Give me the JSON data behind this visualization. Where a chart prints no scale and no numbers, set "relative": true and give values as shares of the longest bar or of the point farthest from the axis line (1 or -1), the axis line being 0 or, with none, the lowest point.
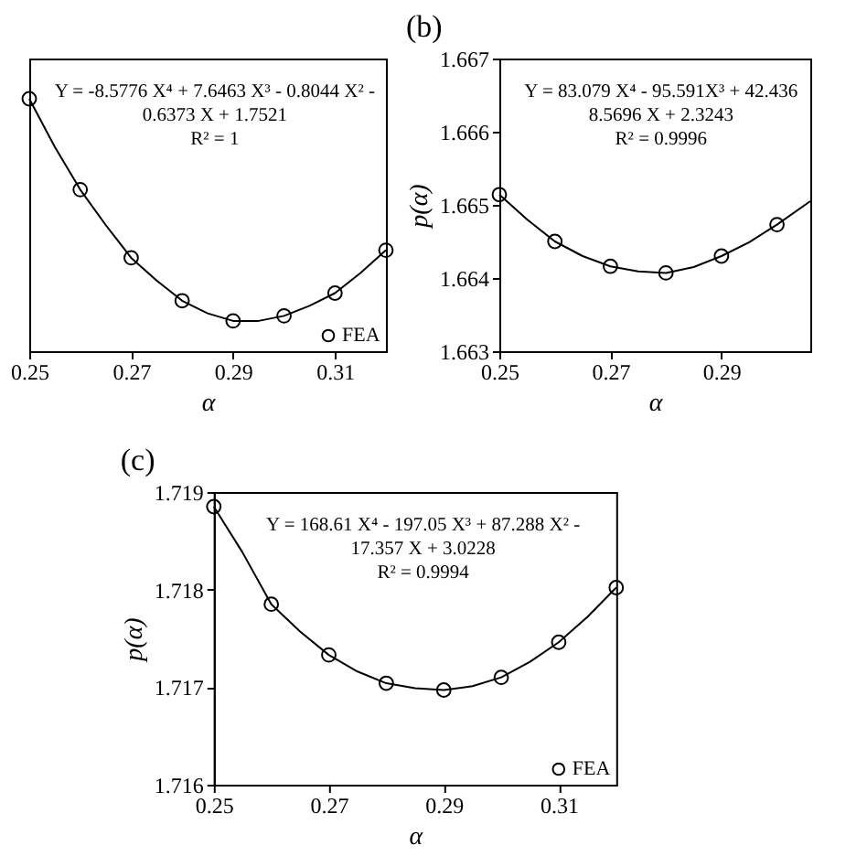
{
  "chart_data": [
    {
      "type": "scatter",
      "relative": true,
      "tick_labels": "x",
      "xlabel": "α",
      "xlim": [
        0.25,
        0.32
      ],
      "xticks": [
        0.25,
        0.27,
        0.29,
        0.31
      ],
      "marker": "circle",
      "legend": "bottom right",
      "annotations": [
        "Y = -8.5776 X⁴ + 7.6463 X³ - 0.8044 X² -",
        "0.6373 X + 1.7521",
        "R² = 1"
      ],
      "x": [
        0.25,
        0.26,
        0.27,
        0.28,
        0.29,
        0.3,
        0.31,
        0.32
      ],
      "series": [
        {
          "name": "FEA",
          "color": "#000000",
          "values": [
            1,
            0.64,
            0.37,
            0.2,
            0.12,
            0.14,
            0.23,
            0.4
          ]
        },
        {
          "type": "line",
          "marker": "none",
          "line_style": "solid",
          "color": "#000000",
          "x": [
            0.25,
            0.255,
            0.26,
            0.265,
            0.27,
            0.275,
            0.28,
            0.285,
            0.29,
            0.295,
            0.3,
            0.305,
            0.31,
            0.315,
            0.32
          ],
          "values": [
            1,
            0.81,
            0.64,
            0.5,
            0.37,
            0.28,
            0.2,
            0.15,
            0.12,
            0.12,
            0.14,
            0.18,
            0.23,
            0.31,
            0.4
          ]
        }
      ]
    },
    {
      "type": "scatter",
      "title": "(b)",
      "xlabel": "α",
      "ylabel": "p(α)",
      "xlim": [
        0.25,
        0.306
      ],
      "xticks": [
        0.25,
        0.27,
        0.29
      ],
      "ylim": [
        1.663,
        1.667
      ],
      "yticks": [
        1.663,
        1.664,
        1.665,
        1.666,
        1.667
      ],
      "marker": "circle",
      "annotations": [
        "Y = 83.079 X⁴ - 95.591X³ + 42.436",
        "8.5696 X + 2.3243",
        "R² = 0.9996"
      ],
      "x": [
        0.25,
        0.26,
        0.27,
        0.28,
        0.29,
        0.3
      ],
      "series": [
        {
          "color": "#000000",
          "values": [
            1.66514,
            1.6645,
            1.66416,
            1.66407,
            1.6643,
            1.66473
          ]
        },
        {
          "type": "line",
          "marker": "none",
          "line_style": "solid",
          "color": "#000000",
          "x": [
            0.25,
            0.255,
            0.26,
            0.265,
            0.27,
            0.275,
            0.28,
            0.285,
            0.29,
            0.295,
            0.3,
            0.306
          ],
          "values": [
            1.66514,
            1.6648,
            1.6645,
            1.6643,
            1.66416,
            1.66409,
            1.66407,
            1.66415,
            1.6643,
            1.66449,
            1.66473,
            1.66505
          ]
        }
      ]
    },
    {
      "type": "scatter",
      "title": "(c)",
      "xlabel": "α",
      "ylabel": "p(α)",
      "xlim": [
        0.25,
        0.32
      ],
      "xticks": [
        0.25,
        0.27,
        0.29,
        0.31
      ],
      "ylim": [
        1.716,
        1.719
      ],
      "yticks": [
        1.716,
        1.717,
        1.718,
        1.719
      ],
      "marker": "circle",
      "legend": "bottom right",
      "annotations": [
        "Y = 168.61 X⁴ - 197.05 X³ + 87.288 X² -",
        "17.357 X + 3.0228",
        "R² = 0.9994"
      ],
      "x": [
        0.25,
        0.26,
        0.27,
        0.28,
        0.29,
        0.3,
        0.31,
        0.32
      ],
      "series": [
        {
          "name": "FEA",
          "color": "#000000",
          "values": [
            1.71885,
            1.71785,
            1.71733,
            1.71704,
            1.71697,
            1.7171,
            1.71746,
            1.71802
          ]
        },
        {
          "type": "line",
          "marker": "none",
          "line_style": "solid",
          "color": "#000000",
          "x": [
            0.25,
            0.255,
            0.26,
            0.265,
            0.27,
            0.275,
            0.28,
            0.285,
            0.29,
            0.295,
            0.3,
            0.305,
            0.31,
            0.315,
            0.32
          ],
          "values": [
            1.71885,
            1.71838,
            1.71785,
            1.71757,
            1.71733,
            1.71716,
            1.71704,
            1.71699,
            1.71697,
            1.71701,
            1.7171,
            1.71726,
            1.71746,
            1.71772,
            1.71802
          ]
        }
      ]
    }
  ]
}
